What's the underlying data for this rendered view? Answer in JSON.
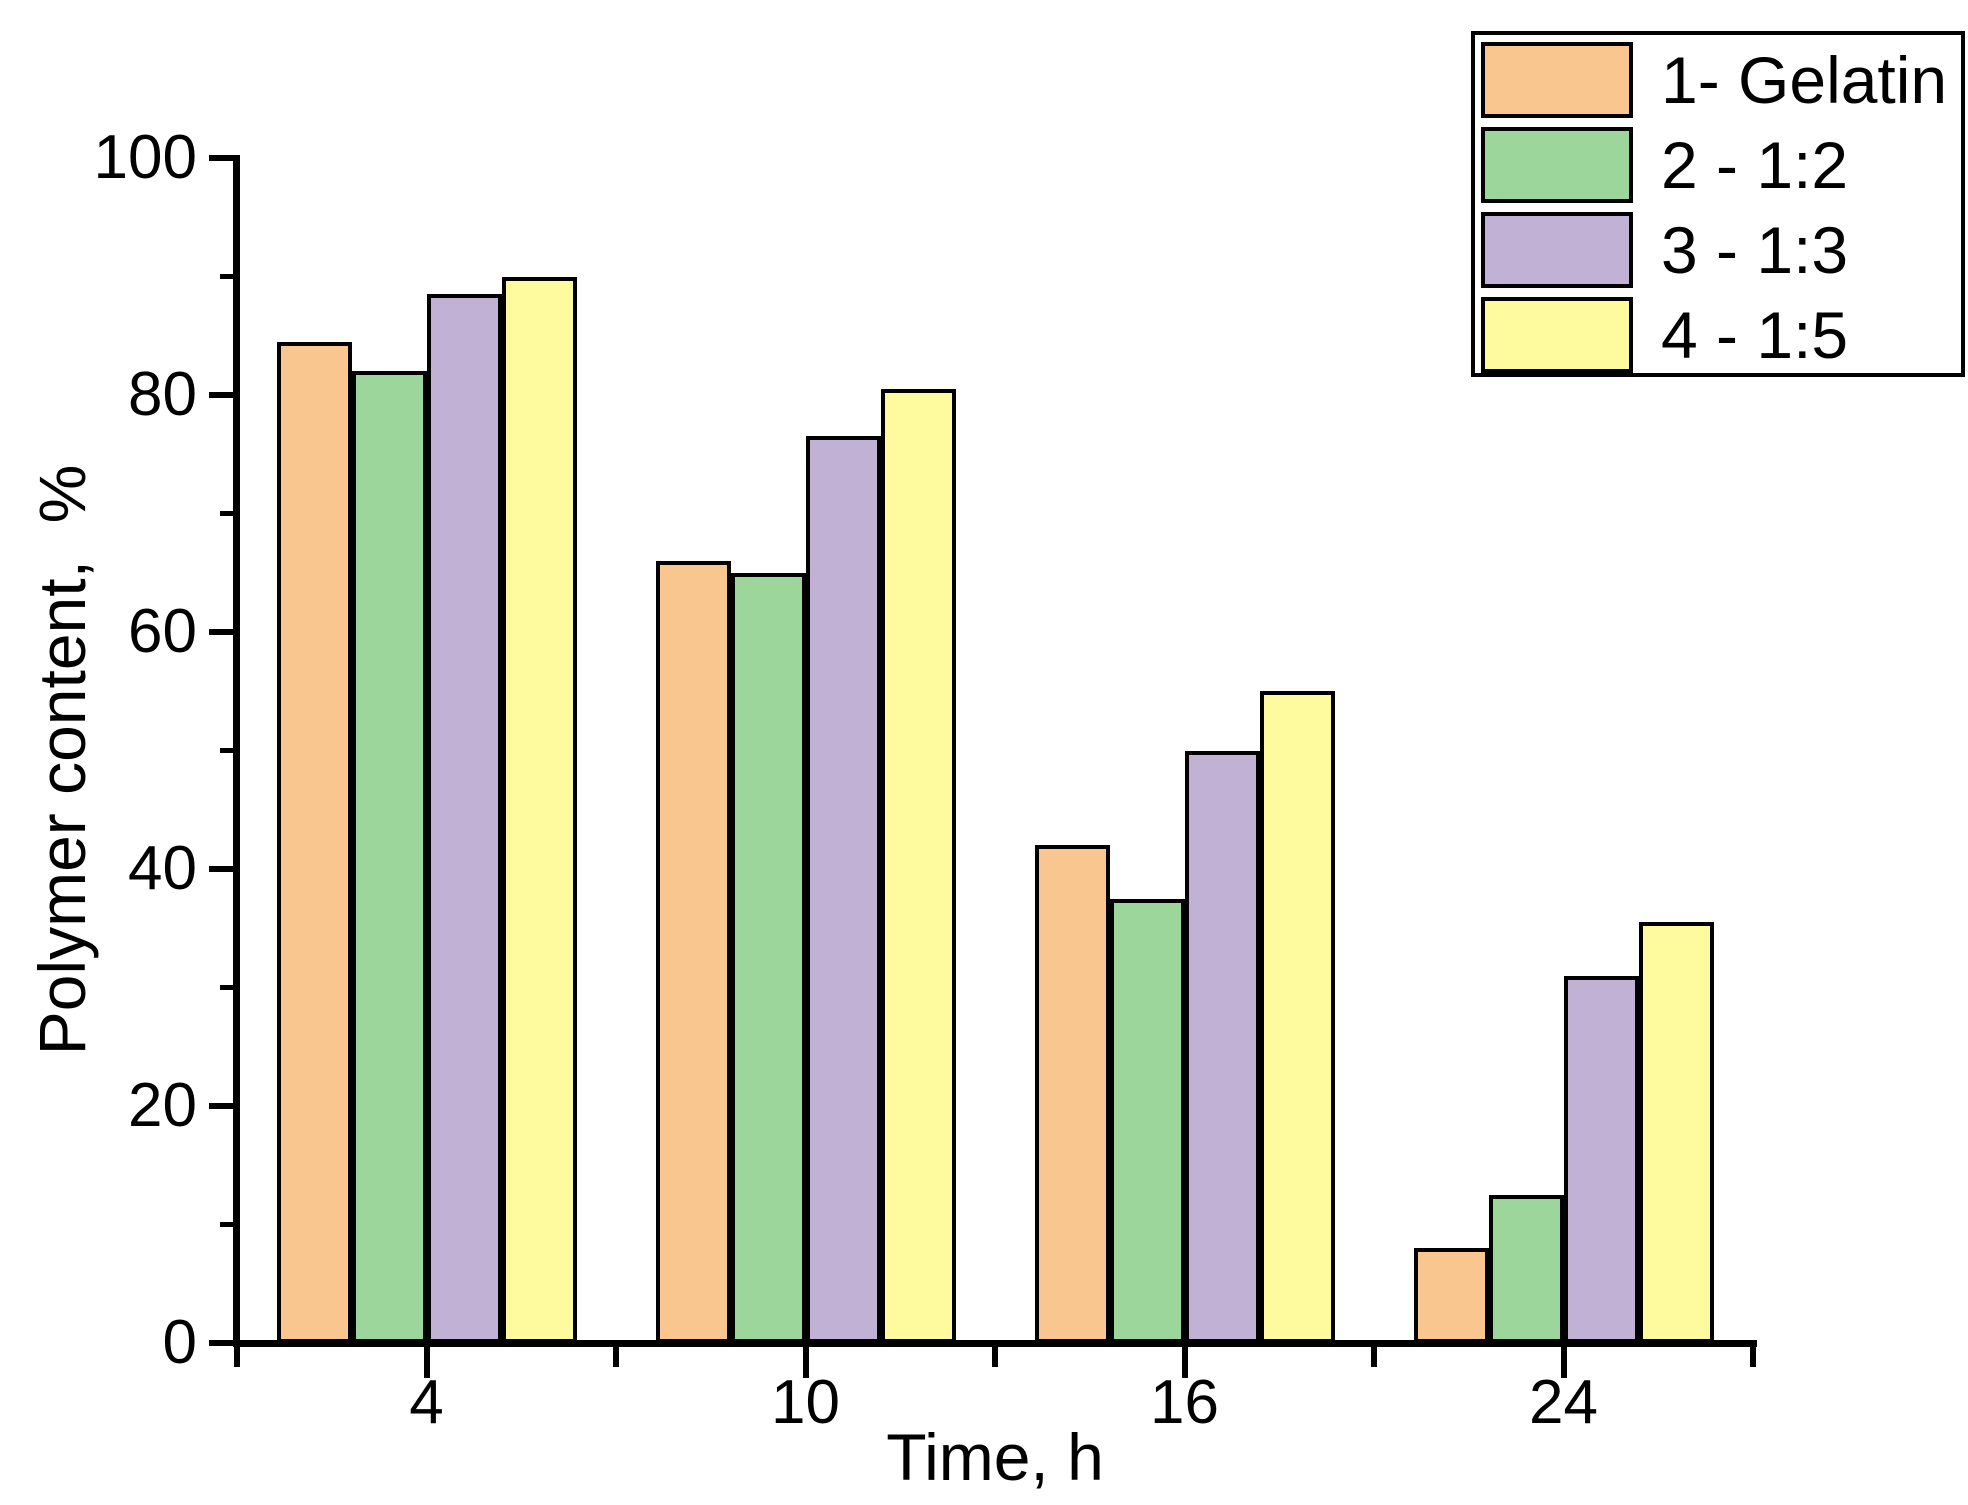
{
  "chart_data": {
    "type": "bar",
    "title": "",
    "xlabel": "Time, h",
    "ylabel": "Polymer content,  %",
    "categories": [
      "4",
      "10",
      "16",
      "24"
    ],
    "series": [
      {
        "name": "1- Gelatin",
        "color": "#FAC690",
        "values": [
          84.5,
          66,
          42,
          8
        ]
      },
      {
        "name": "2 - 1:2",
        "color": "#9CD69A",
        "values": [
          82,
          65,
          37.5,
          12.5
        ]
      },
      {
        "name": "3 - 1:3",
        "color": "#C1B1D5",
        "values": [
          88.5,
          76.5,
          50,
          31
        ]
      },
      {
        "name": "4 - 1:5",
        "color": "#FDFB9E",
        "values": [
          90,
          80.5,
          55,
          35.5
        ]
      }
    ],
    "ylim": [
      0,
      100
    ],
    "y_major_ticks": [
      0,
      20,
      40,
      60,
      80,
      100
    ],
    "y_minor_ticks": [
      10,
      30,
      50,
      70,
      90
    ],
    "y_tick_labels": [
      "0",
      "20",
      "40",
      "60",
      "80",
      "100"
    ],
    "grid": false,
    "legend_position": "top-right",
    "bar_outline_color": "#000000",
    "axis_color": "#000000",
    "background_color": "#FFFFFF"
  }
}
